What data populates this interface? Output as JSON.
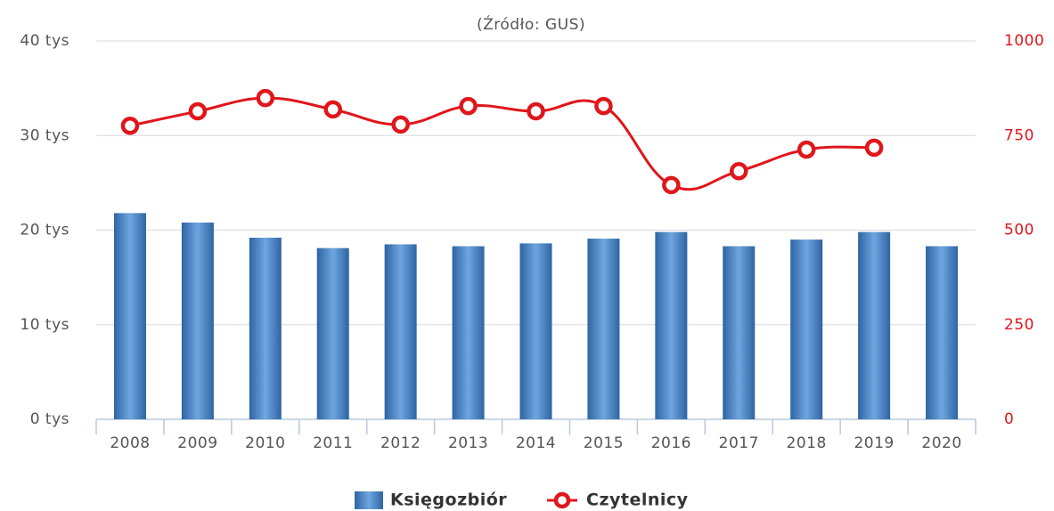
{
  "chart_data": {
    "type": "bar_line",
    "subtitle": "(Źródło: GUS)",
    "categories": [
      "2008",
      "2009",
      "2010",
      "2011",
      "2012",
      "2013",
      "2014",
      "2015",
      "2016",
      "2017",
      "2018",
      "2019",
      "2020"
    ],
    "series": [
      {
        "name": "Księgozbiór",
        "type": "bar",
        "color": "#3f7cc0",
        "values": [
          21800,
          20800,
          19200,
          18100,
          18500,
          18300,
          18600,
          19100,
          19800,
          18300,
          19000,
          19800,
          18300
        ]
      },
      {
        "name": "Czytelnicy",
        "type": "line",
        "axis": "y2",
        "color": "#e0161b",
        "values": [
          776,
          814,
          849,
          819,
          779,
          828,
          814,
          828,
          619,
          656,
          713,
          718,
          null
        ]
      }
    ],
    "ylim": [
      0,
      40000
    ],
    "yticks": [
      {
        "value": 0,
        "label": "0 tys"
      },
      {
        "value": 10000,
        "label": "10 tys"
      },
      {
        "value": 20000,
        "label": "20 tys"
      },
      {
        "value": 30000,
        "label": "30 tys"
      },
      {
        "value": 40000,
        "label": "40 tys"
      }
    ],
    "y2lim": [
      0,
      1000
    ],
    "y2ticks": [
      0,
      250,
      500,
      750,
      1000
    ],
    "grid": true
  }
}
